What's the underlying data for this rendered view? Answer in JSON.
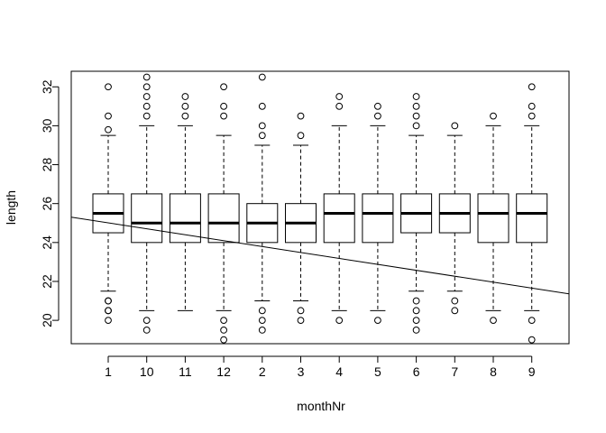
{
  "chart_data": {
    "type": "boxplot",
    "title": "",
    "xlabel": "monthNr",
    "ylabel": "length",
    "categories": [
      "1",
      "10",
      "11",
      "12",
      "2",
      "3",
      "4",
      "5",
      "6",
      "7",
      "8",
      "9"
    ],
    "ylim": [
      18.8,
      32.8
    ],
    "yticks": [
      20,
      22,
      24,
      26,
      28,
      30,
      32
    ],
    "grid": false,
    "boxes": [
      {
        "category": "1",
        "lower_whisker": 21.5,
        "q1": 24.5,
        "median": 25.5,
        "q3": 26.5,
        "upper_whisker": 29.5,
        "outliers": [
          20,
          20.5,
          20.5,
          21,
          21,
          29.8,
          30.5,
          32
        ]
      },
      {
        "category": "10",
        "lower_whisker": 20.5,
        "q1": 24,
        "median": 25,
        "q3": 26.5,
        "upper_whisker": 30,
        "outliers": [
          19.5,
          20,
          30.5,
          31,
          31.5,
          32,
          32.5
        ]
      },
      {
        "category": "11",
        "lower_whisker": 20.5,
        "q1": 24,
        "median": 25,
        "q3": 26.5,
        "upper_whisker": 30,
        "outliers": [
          30.5,
          31,
          31.5
        ]
      },
      {
        "category": "12",
        "lower_whisker": 20.5,
        "q1": 24,
        "median": 25,
        "q3": 26.5,
        "upper_whisker": 29.5,
        "outliers": [
          19,
          19.5,
          20,
          30.5,
          31,
          32
        ]
      },
      {
        "category": "2",
        "lower_whisker": 21,
        "q1": 24,
        "median": 25,
        "q3": 26,
        "upper_whisker": 29,
        "outliers": [
          19.5,
          20,
          20.5,
          29.5,
          30,
          31,
          32.5
        ]
      },
      {
        "category": "3",
        "lower_whisker": 21,
        "q1": 24,
        "median": 25,
        "q3": 26,
        "upper_whisker": 29,
        "outliers": [
          20,
          20.5,
          29.5,
          30.5
        ]
      },
      {
        "category": "4",
        "lower_whisker": 20.5,
        "q1": 24,
        "median": 25.5,
        "q3": 26.5,
        "upper_whisker": 30,
        "outliers": [
          20,
          31,
          31.5
        ]
      },
      {
        "category": "5",
        "lower_whisker": 20.5,
        "q1": 24,
        "median": 25.5,
        "q3": 26.5,
        "upper_whisker": 30,
        "outliers": [
          20,
          30.5,
          31
        ]
      },
      {
        "category": "6",
        "lower_whisker": 21.5,
        "q1": 24.5,
        "median": 25.5,
        "q3": 26.5,
        "upper_whisker": 29.5,
        "outliers": [
          19.5,
          20,
          20.5,
          21,
          30,
          30.5,
          31,
          31.5
        ]
      },
      {
        "category": "7",
        "lower_whisker": 21.5,
        "q1": 24.5,
        "median": 25.5,
        "q3": 26.5,
        "upper_whisker": 29.5,
        "outliers": [
          20.5,
          21,
          30
        ]
      },
      {
        "category": "8",
        "lower_whisker": 20.5,
        "q1": 24,
        "median": 25.5,
        "q3": 26.5,
        "upper_whisker": 30,
        "outliers": [
          20,
          30.5
        ]
      },
      {
        "category": "9",
        "lower_whisker": 20.5,
        "q1": 24,
        "median": 25.5,
        "q3": 26.5,
        "upper_whisker": 30,
        "outliers": [
          19,
          20,
          30.5,
          31,
          32
        ]
      }
    ],
    "regression_line": {
      "y_at_first_category": 25.01,
      "slope_per_category": -0.3048
    }
  }
}
